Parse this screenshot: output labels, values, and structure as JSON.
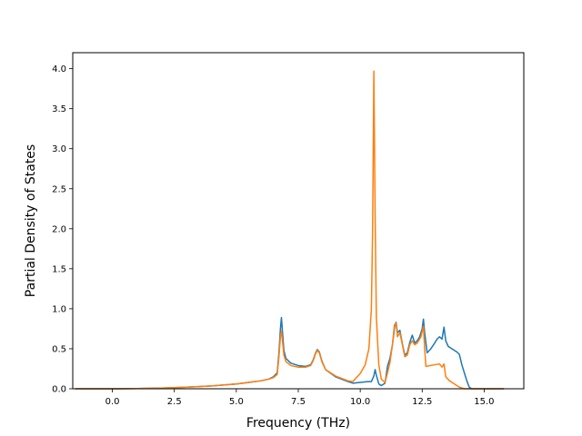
{
  "chart_data": {
    "type": "line",
    "title": "",
    "xlabel": "Frequency (THz)",
    "ylabel": "Partial Density of States",
    "xlim": [
      -1.6,
      16.6
    ],
    "ylim": [
      0.0,
      4.2
    ],
    "xticks": [
      0.0,
      2.5,
      5.0,
      7.5,
      10.0,
      12.5,
      15.0
    ],
    "xtick_labels": [
      "0.0",
      "2.5",
      "5.0",
      "7.5",
      "10.0",
      "12.5",
      "15.0"
    ],
    "yticks": [
      0.0,
      0.5,
      1.0,
      1.5,
      2.0,
      2.5,
      3.0,
      3.5,
      4.0
    ],
    "ytick_labels": [
      "0.0",
      "0.5",
      "1.0",
      "1.5",
      "2.0",
      "2.5",
      "3.0",
      "3.5",
      "4.0"
    ],
    "grid": false,
    "legend": "none",
    "series": [
      {
        "color": "#1f77b4",
        "points": [
          [
            -1.5,
            0.0
          ],
          [
            0.0,
            0.0
          ],
          [
            1.0,
            0.003
          ],
          [
            2.0,
            0.008
          ],
          [
            3.0,
            0.02
          ],
          [
            4.0,
            0.035
          ],
          [
            5.0,
            0.06
          ],
          [
            5.5,
            0.08
          ],
          [
            6.0,
            0.1
          ],
          [
            6.3,
            0.12
          ],
          [
            6.5,
            0.15
          ],
          [
            6.65,
            0.2
          ],
          [
            6.72,
            0.45
          ],
          [
            6.78,
            0.75
          ],
          [
            6.82,
            0.89
          ],
          [
            6.86,
            0.72
          ],
          [
            6.92,
            0.48
          ],
          [
            7.0,
            0.38
          ],
          [
            7.2,
            0.32
          ],
          [
            7.5,
            0.29
          ],
          [
            7.8,
            0.28
          ],
          [
            8.0,
            0.3
          ],
          [
            8.1,
            0.36
          ],
          [
            8.2,
            0.45
          ],
          [
            8.27,
            0.49
          ],
          [
            8.35,
            0.46
          ],
          [
            8.45,
            0.35
          ],
          [
            8.6,
            0.24
          ],
          [
            9.0,
            0.15
          ],
          [
            9.5,
            0.09
          ],
          [
            9.7,
            0.07
          ],
          [
            10.0,
            0.08
          ],
          [
            10.3,
            0.09
          ],
          [
            10.45,
            0.09
          ],
          [
            10.55,
            0.16
          ],
          [
            10.6,
            0.24
          ],
          [
            10.65,
            0.17
          ],
          [
            10.75,
            0.06
          ],
          [
            10.85,
            0.04
          ],
          [
            11.0,
            0.07
          ],
          [
            11.1,
            0.28
          ],
          [
            11.2,
            0.38
          ],
          [
            11.3,
            0.55
          ],
          [
            11.4,
            0.8
          ],
          [
            11.45,
            0.83
          ],
          [
            11.5,
            0.7
          ],
          [
            11.6,
            0.73
          ],
          [
            11.7,
            0.56
          ],
          [
            11.8,
            0.42
          ],
          [
            11.9,
            0.45
          ],
          [
            12.0,
            0.58
          ],
          [
            12.1,
            0.67
          ],
          [
            12.2,
            0.57
          ],
          [
            12.3,
            0.6
          ],
          [
            12.4,
            0.65
          ],
          [
            12.5,
            0.75
          ],
          [
            12.55,
            0.87
          ],
          [
            12.6,
            0.7
          ],
          [
            12.7,
            0.45
          ],
          [
            12.85,
            0.5
          ],
          [
            13.0,
            0.57
          ],
          [
            13.1,
            0.62
          ],
          [
            13.2,
            0.65
          ],
          [
            13.3,
            0.62
          ],
          [
            13.38,
            0.77
          ],
          [
            13.45,
            0.6
          ],
          [
            13.55,
            0.53
          ],
          [
            13.7,
            0.5
          ],
          [
            13.9,
            0.46
          ],
          [
            14.0,
            0.43
          ],
          [
            14.1,
            0.3
          ],
          [
            14.2,
            0.2
          ],
          [
            14.3,
            0.1
          ],
          [
            14.4,
            0.02
          ],
          [
            14.5,
            0.0
          ],
          [
            15.8,
            0.0
          ]
        ]
      },
      {
        "color": "#ff7f0e",
        "points": [
          [
            -1.5,
            0.0
          ],
          [
            0.0,
            0.0
          ],
          [
            1.0,
            0.003
          ],
          [
            2.0,
            0.008
          ],
          [
            3.0,
            0.02
          ],
          [
            4.0,
            0.035
          ],
          [
            5.0,
            0.06
          ],
          [
            5.5,
            0.08
          ],
          [
            6.0,
            0.1
          ],
          [
            6.3,
            0.12
          ],
          [
            6.5,
            0.14
          ],
          [
            6.65,
            0.18
          ],
          [
            6.72,
            0.4
          ],
          [
            6.78,
            0.65
          ],
          [
            6.82,
            0.72
          ],
          [
            6.86,
            0.6
          ],
          [
            6.92,
            0.42
          ],
          [
            7.0,
            0.34
          ],
          [
            7.2,
            0.29
          ],
          [
            7.5,
            0.27
          ],
          [
            7.8,
            0.27
          ],
          [
            8.0,
            0.29
          ],
          [
            8.1,
            0.35
          ],
          [
            8.2,
            0.44
          ],
          [
            8.27,
            0.48
          ],
          [
            8.35,
            0.45
          ],
          [
            8.45,
            0.34
          ],
          [
            8.6,
            0.24
          ],
          [
            9.0,
            0.16
          ],
          [
            9.5,
            0.1
          ],
          [
            9.7,
            0.09
          ],
          [
            10.0,
            0.19
          ],
          [
            10.2,
            0.3
          ],
          [
            10.35,
            0.5
          ],
          [
            10.45,
            1.0
          ],
          [
            10.5,
            2.0
          ],
          [
            10.55,
            3.97
          ],
          [
            10.6,
            2.2
          ],
          [
            10.65,
            0.9
          ],
          [
            10.75,
            0.3
          ],
          [
            10.85,
            0.12
          ],
          [
            11.0,
            0.08
          ],
          [
            11.1,
            0.2
          ],
          [
            11.2,
            0.33
          ],
          [
            11.3,
            0.55
          ],
          [
            11.38,
            0.8
          ],
          [
            11.45,
            0.82
          ],
          [
            11.5,
            0.65
          ],
          [
            11.6,
            0.7
          ],
          [
            11.7,
            0.55
          ],
          [
            11.8,
            0.4
          ],
          [
            11.9,
            0.42
          ],
          [
            12.0,
            0.55
          ],
          [
            12.1,
            0.6
          ],
          [
            12.2,
            0.55
          ],
          [
            12.3,
            0.57
          ],
          [
            12.45,
            0.65
          ],
          [
            12.55,
            0.78
          ],
          [
            12.6,
            0.5
          ],
          [
            12.65,
            0.28
          ],
          [
            13.0,
            0.3
          ],
          [
            13.2,
            0.31
          ],
          [
            13.3,
            0.27
          ],
          [
            13.38,
            0.31
          ],
          [
            13.45,
            0.15
          ],
          [
            13.6,
            0.1
          ],
          [
            13.8,
            0.06
          ],
          [
            14.0,
            0.02
          ],
          [
            14.2,
            0.0
          ],
          [
            15.8,
            0.0
          ]
        ]
      }
    ]
  }
}
